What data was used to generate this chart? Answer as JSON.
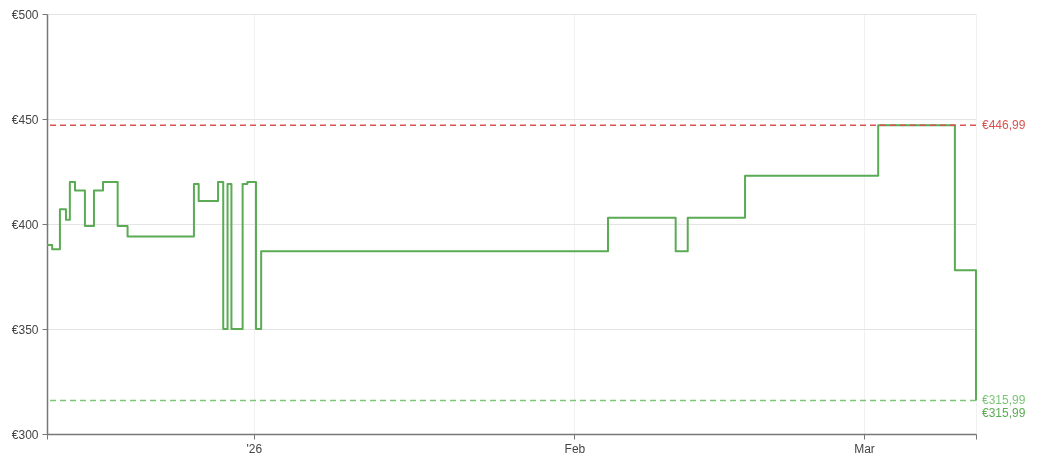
{
  "chart_data": {
    "type": "step",
    "x": [
      "2025-12-12T00:00",
      "2025-12-12T12:00",
      "2025-12-13T06:00",
      "2025-12-13T20:00",
      "2025-12-14T05:00",
      "2025-12-14T17:00",
      "2025-12-15T16:00",
      "2025-12-16T13:00",
      "2025-12-17T10:00",
      "2025-12-18T20:00",
      "2025-12-19T19:00",
      "2025-12-26T05:00",
      "2025-12-26T16:00",
      "2025-12-28T13:00",
      "2025-12-29T01:00",
      "2025-12-29T11:00",
      "2025-12-29T20:00",
      "2025-12-30T22:00",
      "2025-12-31T09:00",
      "2026-01-01T05:00",
      "2026-01-01T17:00",
      "2026-02-04T06:00",
      "2026-02-10T19:00",
      "2026-02-11T23:00",
      "2026-02-17T12:00",
      "2026-03-02T09:00",
      "2026-03-09T19:00",
      "2026-03-11T20:00"
    ],
    "series": [
      {
        "color": "#5aab54",
        "values": [
          390,
          388,
          407,
          402,
          420,
          416,
          399,
          416,
          420,
          399,
          394,
          419,
          411,
          420,
          350,
          419,
          350,
          419,
          420,
          350,
          387,
          403,
          387,
          403,
          423,
          446.99,
          378,
          315.99
        ]
      }
    ],
    "xlim": [
      "2025-12-12T00:00",
      "2026-03-11T20:00"
    ],
    "xticks": [
      {
        "value": "2025-12-12T00:00",
        "label": null
      },
      {
        "value": "2026-01-01",
        "label": "'26"
      },
      {
        "value": "2026-02-01",
        "label": "Feb"
      },
      {
        "value": "2026-03-01",
        "label": "Mar"
      },
      {
        "value": "2026-03-11T20:00",
        "label": null
      }
    ],
    "ylim": [
      300,
      500
    ],
    "yticks": [
      {
        "value": 300,
        "label": "€300"
      },
      {
        "value": 350,
        "label": "€350"
      },
      {
        "value": 400,
        "label": "€400"
      },
      {
        "value": 450,
        "label": "€450"
      },
      {
        "value": 500,
        "label": "€500"
      }
    ],
    "grid": true,
    "line_style": "solid",
    "ref_lines": [
      {
        "axis": "y",
        "value": 446.99,
        "label": "€446,99",
        "color": "#d9534f",
        "line_style": "dashed"
      },
      {
        "axis": "y",
        "value": 315.99,
        "label": "€315,99",
        "color": "#7cc576",
        "line_style": "dashed"
      }
    ],
    "annotations": [
      {
        "text": "€315,99",
        "x": "2026-03-11T20:00",
        "y": 315.99
      }
    ]
  }
}
